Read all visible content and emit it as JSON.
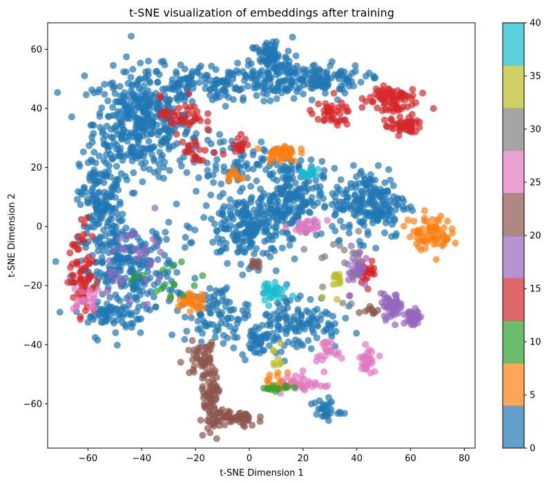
{
  "chart_data": {
    "type": "scatter",
    "title": "t-SNE visualization of embeddings after training",
    "xlabel": "t-SNE Dimension 1",
    "ylabel": "t-SNE Dimension 2",
    "xlim": [
      -75,
      84
    ],
    "ylim": [
      -75,
      69
    ],
    "x_ticks": [
      "−60",
      "−40",
      "−20",
      "0",
      "20",
      "40",
      "60",
      "80"
    ],
    "y_ticks": [
      "−60",
      "−40",
      "−20",
      "0",
      "20",
      "40",
      "60"
    ],
    "x_tick_values": [
      -60,
      -40,
      -20,
      0,
      20,
      40,
      60,
      80
    ],
    "y_tick_values": [
      -60,
      -40,
      -20,
      0,
      20,
      40,
      60
    ],
    "grid": false,
    "legend": "none",
    "marker_alpha": 0.7,
    "colormap": "tab10",
    "colorbar": {
      "ticks": [
        "0",
        "5",
        "10",
        "15",
        "20",
        "25",
        "30",
        "35",
        "40"
      ],
      "tick_values": [
        0,
        5,
        10,
        15,
        20,
        25,
        30,
        35,
        40
      ],
      "range": [
        0,
        40
      ],
      "colors": [
        "#1f77b4",
        "#ff7f0e",
        "#2ca02c",
        "#d62728",
        "#9467bd",
        "#8c564b",
        "#e377c2",
        "#7f7f7f",
        "#bcbd22",
        "#17becf"
      ]
    },
    "clusters": [
      {
        "label": 0,
        "color": "#1f77b4",
        "cx": -40,
        "cy": 35,
        "sx": 9,
        "sy": 9,
        "n": 380
      },
      {
        "label": 0,
        "color": "#1f77b4",
        "cx": -10,
        "cy": 48,
        "sx": 18,
        "sy": 3,
        "n": 180
      },
      {
        "label": 0,
        "color": "#1f77b4",
        "cx": 8,
        "cy": 56,
        "sx": 4,
        "sy": 4,
        "n": 90
      },
      {
        "label": 0,
        "color": "#1f77b4",
        "cx": 25,
        "cy": 50,
        "sx": 9,
        "sy": 2.5,
        "n": 120
      },
      {
        "label": 0,
        "color": "#1f77b4",
        "cx": -55,
        "cy": 8,
        "sx": 4,
        "sy": 9,
        "n": 150
      },
      {
        "label": 0,
        "color": "#1f77b4",
        "cx": -45,
        "cy": -15,
        "sx": 9,
        "sy": 8,
        "n": 260
      },
      {
        "label": 0,
        "color": "#1f77b4",
        "cx": -52,
        "cy": -30,
        "sx": 4,
        "sy": 2,
        "n": 40
      },
      {
        "label": 0,
        "color": "#1f77b4",
        "cx": 0,
        "cy": 0,
        "sx": 9,
        "sy": 6,
        "n": 220
      },
      {
        "label": 0,
        "color": "#1f77b4",
        "cx": 15,
        "cy": 10,
        "sx": 6,
        "sy": 6,
        "n": 160
      },
      {
        "label": 0,
        "color": "#1f77b4",
        "cx": 45,
        "cy": 8,
        "sx": 7,
        "sy": 6,
        "n": 200
      },
      {
        "label": 0,
        "color": "#1f77b4",
        "cx": 18,
        "cy": -32,
        "sx": 8,
        "sy": 5,
        "n": 120
      },
      {
        "label": 0,
        "color": "#1f77b4",
        "cx": 3,
        "cy": -38,
        "sx": 3,
        "sy": 3,
        "n": 40
      },
      {
        "label": 0,
        "color": "#1f77b4",
        "cx": -12,
        "cy": -30,
        "sx": 6,
        "sy": 5,
        "n": 90
      },
      {
        "label": 0,
        "color": "#1f77b4",
        "cx": 28,
        "cy": -62,
        "sx": 3,
        "sy": 2,
        "n": 30
      },
      {
        "label": 0,
        "color": "#1f77b4",
        "cx": -5,
        "cy": 22,
        "sx": 10,
        "sy": 4,
        "n": 80
      },
      {
        "label": 15,
        "color": "#d62728",
        "cx": 52,
        "cy": 43,
        "sx": 5,
        "sy": 3,
        "n": 80
      },
      {
        "label": 15,
        "color": "#d62728",
        "cx": 58,
        "cy": 34,
        "sx": 3,
        "sy": 1.5,
        "n": 40
      },
      {
        "label": 15,
        "color": "#d62728",
        "cx": 30,
        "cy": 38,
        "sx": 4,
        "sy": 2,
        "n": 40
      },
      {
        "label": 15,
        "color": "#d62728",
        "cx": -25,
        "cy": 38,
        "sx": 4,
        "sy": 3,
        "n": 40
      },
      {
        "label": 15,
        "color": "#d62728",
        "cx": -62,
        "cy": -15,
        "sx": 2.5,
        "sy": 8,
        "n": 70
      },
      {
        "label": 15,
        "color": "#d62728",
        "cx": 44,
        "cy": -15,
        "sx": 1.5,
        "sy": 2,
        "n": 25
      },
      {
        "label": 15,
        "color": "#d62728",
        "cx": -20,
        "cy": 25,
        "sx": 4,
        "sy": 2,
        "n": 20
      },
      {
        "label": 15,
        "color": "#d62728",
        "cx": -2,
        "cy": 28,
        "sx": 2,
        "sy": 1.5,
        "n": 15
      },
      {
        "label": 5,
        "color": "#ff7f0e",
        "cx": 67,
        "cy": -2,
        "sx": 4,
        "sy": 3,
        "n": 70
      },
      {
        "label": 5,
        "color": "#ff7f0e",
        "cx": 12,
        "cy": 25,
        "sx": 3,
        "sy": 1.5,
        "n": 40
      },
      {
        "label": 5,
        "color": "#ff7f0e",
        "cx": -22,
        "cy": -25,
        "sx": 3,
        "sy": 2,
        "n": 30
      },
      {
        "label": 5,
        "color": "#ff7f0e",
        "cx": 12,
        "cy": -53,
        "sx": 3,
        "sy": 2,
        "n": 25
      },
      {
        "label": 5,
        "color": "#ff7f0e",
        "cx": -5,
        "cy": 17,
        "sx": 2,
        "sy": 1,
        "n": 12
      },
      {
        "label": 20,
        "color": "#9467bd",
        "cx": 53,
        "cy": -27,
        "sx": 2,
        "sy": 2,
        "n": 50
      },
      {
        "label": 20,
        "color": "#9467bd",
        "cx": 61,
        "cy": -31,
        "sx": 1.2,
        "sy": 2,
        "n": 35
      },
      {
        "label": 20,
        "color": "#9467bd",
        "cx": 40,
        "cy": -14,
        "sx": 2,
        "sy": 4,
        "n": 30
      },
      {
        "label": 20,
        "color": "#9467bd",
        "cx": -40,
        "cy": -10,
        "sx": 6,
        "sy": 6,
        "n": 30
      },
      {
        "label": 25,
        "color": "#8c564b",
        "cx": -14,
        "cy": -60,
        "sx": 2,
        "sy": 6,
        "n": 80
      },
      {
        "label": 25,
        "color": "#8c564b",
        "cx": -5,
        "cy": -65,
        "sx": 4,
        "sy": 1.5,
        "n": 50
      },
      {
        "label": 25,
        "color": "#8c564b",
        "cx": -18,
        "cy": -45,
        "sx": 3,
        "sy": 3,
        "n": 40
      },
      {
        "label": 25,
        "color": "#8c564b",
        "cx": 45,
        "cy": -28,
        "sx": 1.5,
        "sy": 1,
        "n": 10
      },
      {
        "label": 25,
        "color": "#8c564b",
        "cx": 2,
        "cy": -12,
        "sx": 2,
        "sy": 1,
        "n": 10
      },
      {
        "label": 30,
        "color": "#e377c2",
        "cx": 44,
        "cy": -45,
        "sx": 1.5,
        "sy": 2,
        "n": 30
      },
      {
        "label": 30,
        "color": "#e377c2",
        "cx": 28,
        "cy": -42,
        "sx": 2,
        "sy": 1.5,
        "n": 20
      },
      {
        "label": 30,
        "color": "#e377c2",
        "cx": 22,
        "cy": 0,
        "sx": 3,
        "sy": 1,
        "n": 25
      },
      {
        "label": 30,
        "color": "#e377c2",
        "cx": 20,
        "cy": -53,
        "sx": 4,
        "sy": 2,
        "n": 30
      },
      {
        "label": 30,
        "color": "#e377c2",
        "cx": -60,
        "cy": -25,
        "sx": 3,
        "sy": 2,
        "n": 20
      },
      {
        "label": 35,
        "color": "#7f7f7f",
        "cx": 35,
        "cy": -12,
        "sx": 6,
        "sy": 6,
        "n": 15
      },
      {
        "label": 40,
        "color": "#bcbd22",
        "cx": 32,
        "cy": -18,
        "sx": 2,
        "sy": 3,
        "n": 12
      },
      {
        "label": 40,
        "color": "#bcbd22",
        "cx": 10,
        "cy": -45,
        "sx": 2,
        "sy": 2,
        "n": 8
      },
      {
        "label": 45,
        "color": "#17becf",
        "cx": 8,
        "cy": -22,
        "sx": 3,
        "sy": 2,
        "n": 25
      },
      {
        "label": 45,
        "color": "#17becf",
        "cx": 22,
        "cy": 18,
        "sx": 2,
        "sy": 1,
        "n": 15
      },
      {
        "label": 10,
        "color": "#2ca02c",
        "cx": -30,
        "cy": -20,
        "sx": 6,
        "sy": 4,
        "n": 15
      },
      {
        "label": 10,
        "color": "#2ca02c",
        "cx": 10,
        "cy": -55,
        "sx": 3,
        "sy": 1,
        "n": 12
      }
    ]
  }
}
